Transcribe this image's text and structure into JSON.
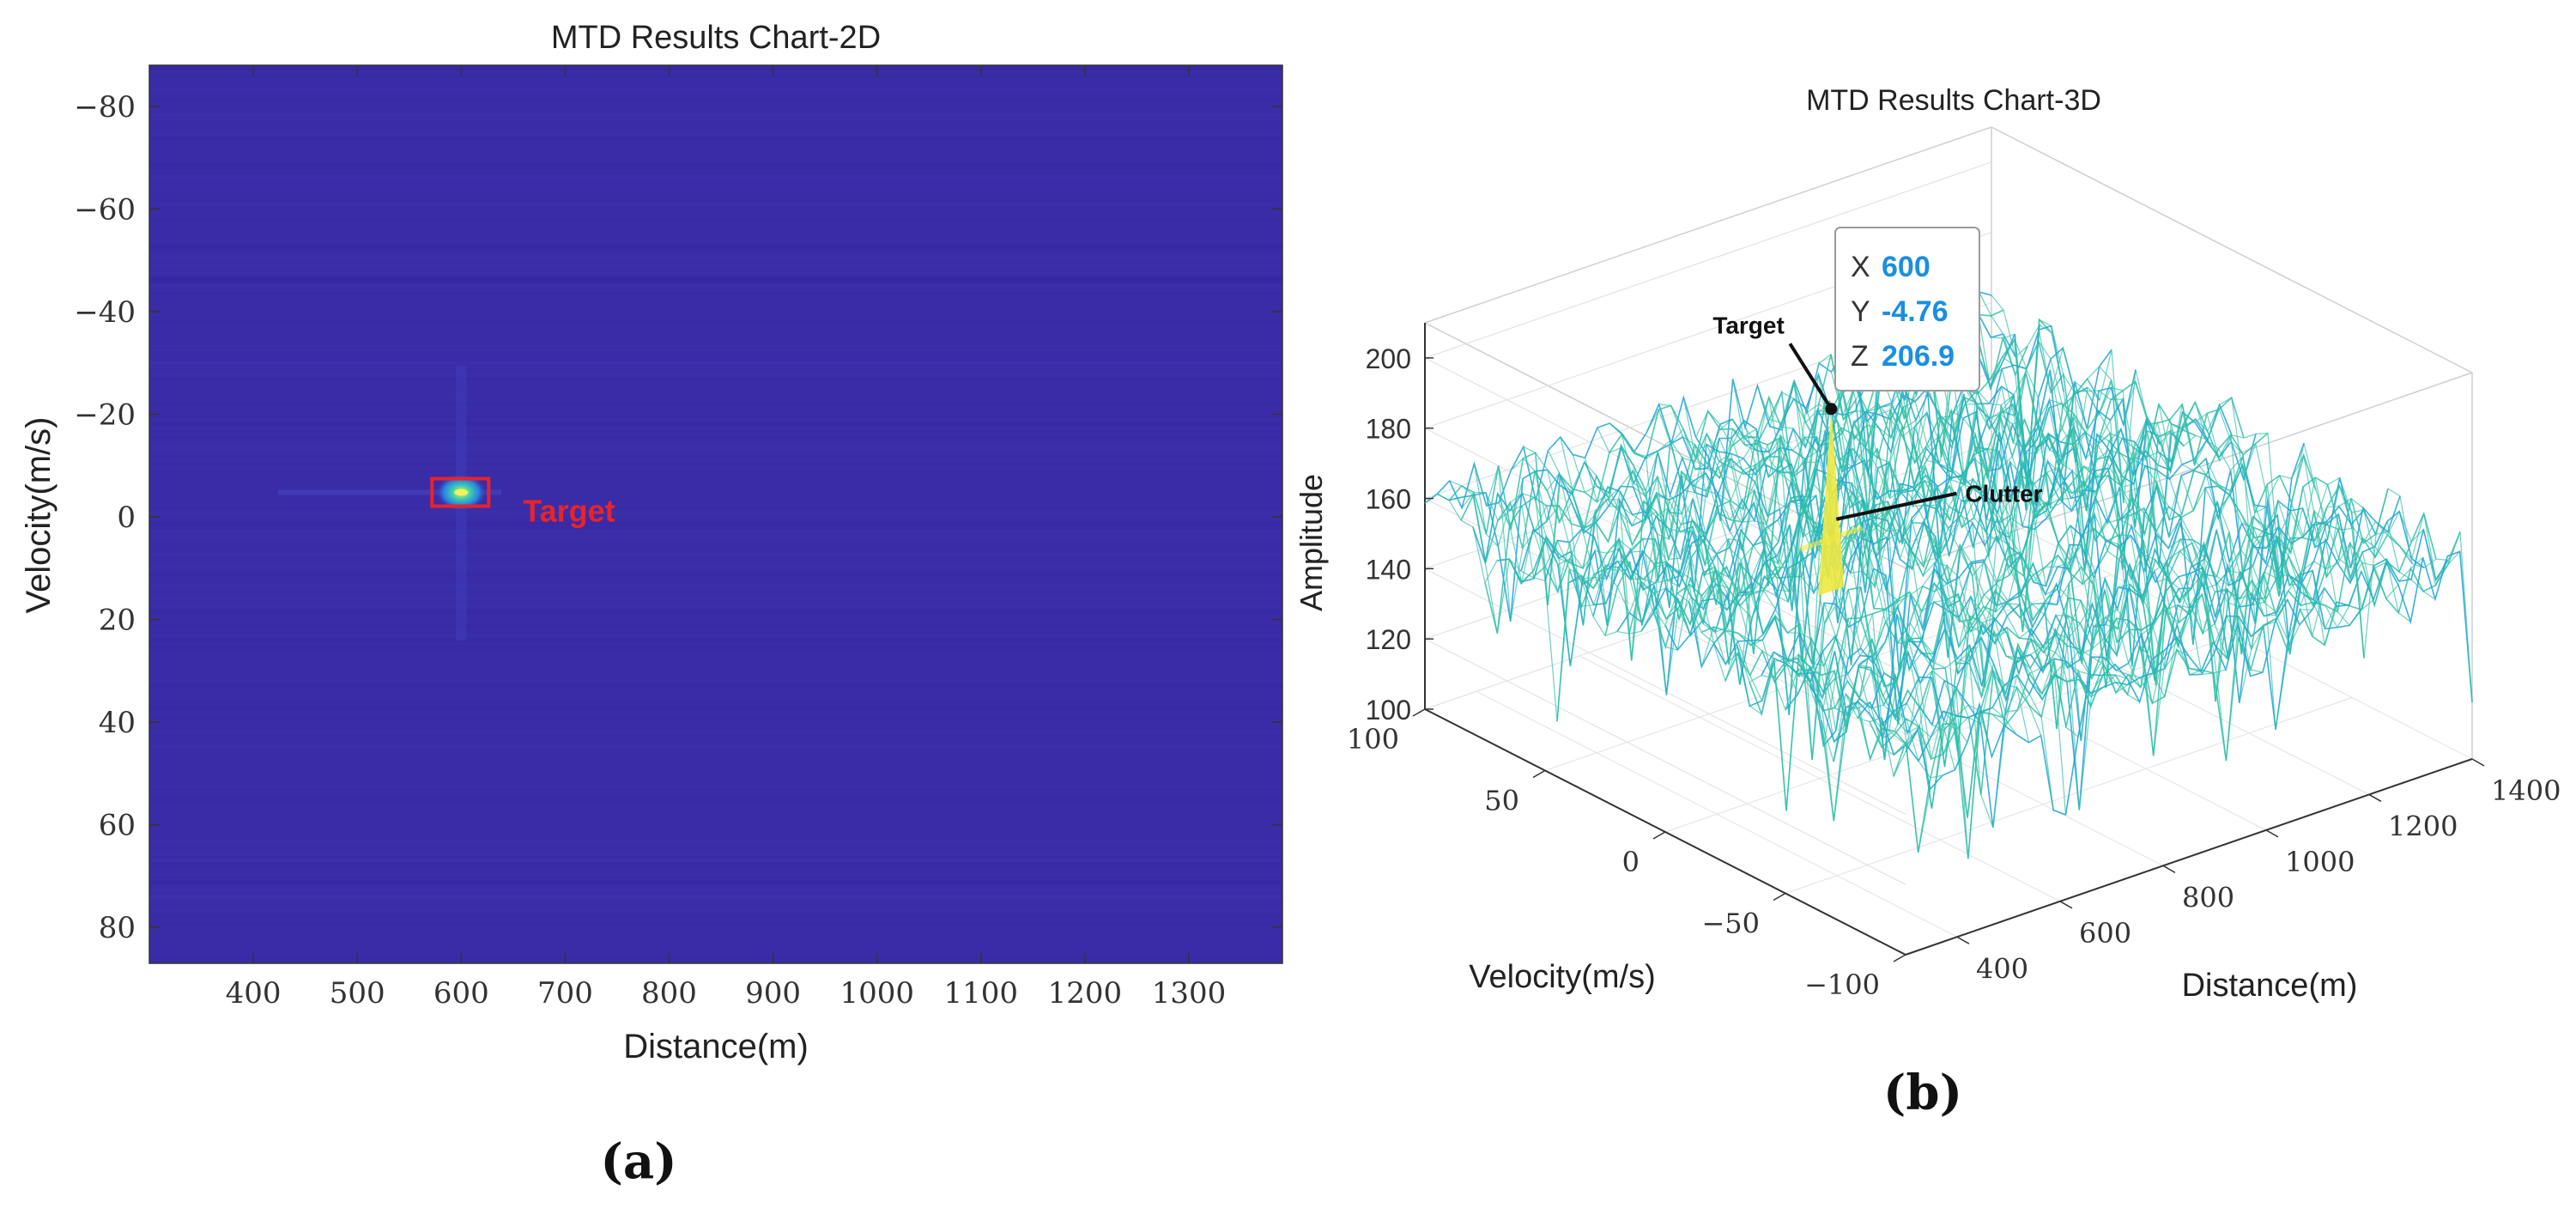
{
  "figure": {
    "panel_a_label": "(a)",
    "panel_b_label": "(b)"
  },
  "chart_data": [
    {
      "type": "heatmap",
      "title": "MTD Results Chart-2D",
      "xlabel": "Distance(m)",
      "ylabel": "Velocity(m/s)",
      "xlim": [
        300,
        1390
      ],
      "ylim": [
        -88,
        87
      ],
      "y_reversed": true,
      "xticks": [
        400,
        500,
        600,
        700,
        800,
        900,
        1000,
        1100,
        1200,
        1300
      ],
      "yticks": [
        -80,
        -60,
        -40,
        -20,
        0,
        20,
        40,
        60,
        80
      ],
      "ytick_labels": [
        "−80",
        "−60",
        "−40",
        "−20",
        "0",
        "20",
        "40",
        "60",
        "80"
      ],
      "background_color": "#3a2ca6",
      "peak": {
        "distance": 600,
        "velocity": -4.76
      },
      "annotation": {
        "text": "Target",
        "color": "#e8232a"
      }
    },
    {
      "type": "surface3d",
      "title": "MTD Results Chart-3D",
      "xlabel": "Distance(m)",
      "ylabel": "Velocity(m/s)",
      "zlabel": "Amplitude",
      "xlim": [
        300,
        1400
      ],
      "ylim": [
        -100,
        100
      ],
      "zlim": [
        100,
        210
      ],
      "xticks": [
        400,
        600,
        800,
        1000,
        1200,
        1400
      ],
      "yticks": [
        100,
        50,
        0,
        -50,
        -100
      ],
      "ytick_labels": [
        "100",
        "50",
        "0",
        "−50",
        "−100"
      ],
      "zticks": [
        100,
        120,
        140,
        160,
        180,
        200
      ],
      "noise_floor_mean": 155,
      "noise_floor_min": 112,
      "peak": {
        "x": 600,
        "y": -4.76,
        "z": 206.9
      },
      "datatip": {
        "x_label": "X",
        "x_value": "600",
        "y_label": "Y",
        "y_value": "-4.76",
        "z_label": "Z",
        "z_value": "206.9"
      },
      "annotations": [
        "Target",
        "Clutter"
      ],
      "colors": {
        "low": "#1aa0d8",
        "mid": "#2fbfa8",
        "high": "#f0e840",
        "tip_value": "#1a8fe0"
      }
    }
  ]
}
